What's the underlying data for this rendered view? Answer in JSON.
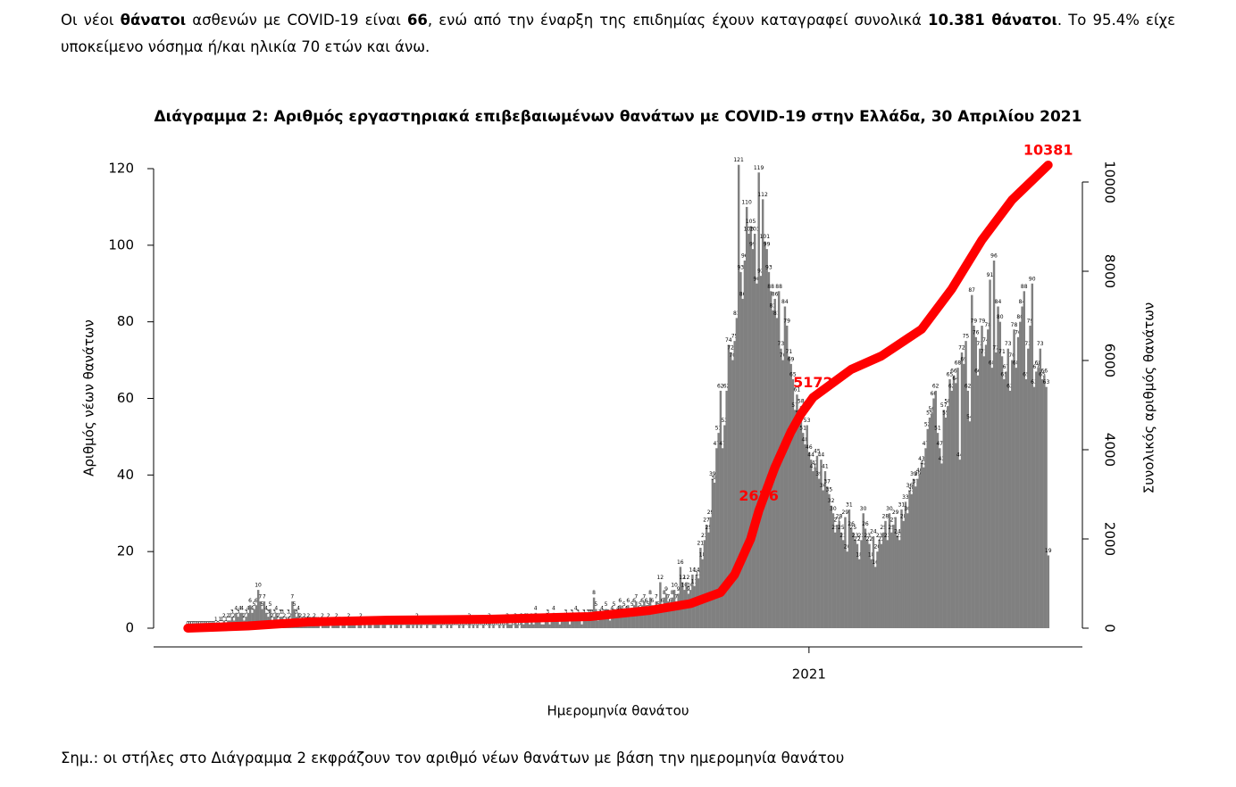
{
  "intro": [
    {
      "text": "Οι νέοι ",
      "bold": false
    },
    {
      "text": "θάνατοι",
      "bold": true
    },
    {
      "text": " ασθενών με COVID-19 είναι ",
      "bold": false
    },
    {
      "text": "66",
      "bold": true
    },
    {
      "text": ", ενώ από την έναρξη της επιδημίας έχουν καταγραφεί συνολικά ",
      "bold": false
    },
    {
      "text": "10.381 θάνατοι",
      "bold": true
    },
    {
      "text": ".  Το 95.4% είχε υποκείμενο νόσημα ή/και ηλικία 70 ετών και άνω.",
      "bold": false
    }
  ],
  "chart_data": {
    "type": "combo",
    "title": "Διάγραμμα 2: Αριθμός εργαστηριακά επιβεβαιωμένων θανάτων με COVID-19 στην Ελλάδα, 30 Απριλίου 2021",
    "x_label": "Ημερομηνία θανάτου",
    "y_label": "Αριθμός νέων θανάτων",
    "y2_label": "Συνολικός αριθμός θανάτων",
    "xlim": [
      -17,
      445
    ],
    "xticks": [
      {
        "value": 309,
        "label": "2021"
      }
    ],
    "ylim": [
      0,
      120
    ],
    "yticks": [
      0,
      20,
      40,
      60,
      80,
      100,
      120
    ],
    "y2lim": [
      0,
      10000
    ],
    "y2ticks": [
      0,
      2000,
      4000,
      6000,
      8000,
      10000
    ],
    "series": [
      {
        "type": "bar",
        "color": "#808080",
        "values": [
          0,
          0,
          0,
          0,
          0,
          0,
          0,
          0,
          0,
          0,
          0,
          0,
          0,
          0,
          1,
          0,
          1,
          1,
          2,
          1,
          2,
          2,
          3,
          2,
          4,
          3,
          4,
          4,
          2,
          3,
          4,
          6,
          4,
          5,
          6,
          10,
          7,
          5,
          7,
          4,
          3,
          5,
          2,
          3,
          4,
          2,
          3,
          3,
          2,
          1,
          3,
          2,
          7,
          5,
          3,
          4,
          2,
          1,
          2,
          1,
          2,
          1,
          1,
          2,
          1,
          1,
          0,
          2,
          1,
          1,
          2,
          0,
          1,
          1,
          2,
          1,
          0,
          1,
          1,
          0,
          2,
          1,
          1,
          1,
          0,
          1,
          2,
          0,
          1,
          0,
          1,
          1,
          0,
          1,
          1,
          1,
          0,
          1,
          1,
          0,
          0,
          1,
          0,
          1,
          1,
          0,
          1,
          0,
          0,
          1,
          1,
          0,
          1,
          0,
          2,
          0,
          1,
          0,
          0,
          1,
          0,
          0,
          1,
          1,
          0,
          0,
          1,
          0,
          0,
          1,
          0,
          1,
          0,
          0,
          0,
          1,
          0,
          1,
          0,
          0,
          2,
          0,
          1,
          0,
          1,
          0,
          0,
          1,
          0,
          0,
          2,
          0,
          1,
          0,
          0,
          1,
          0,
          1,
          0,
          2,
          1,
          1,
          0,
          2,
          1,
          0,
          2,
          1,
          2,
          2,
          1,
          2,
          1,
          4,
          2,
          2,
          1,
          1,
          2,
          3,
          1,
          2,
          4,
          2,
          2,
          1,
          2,
          2,
          3,
          2,
          1,
          3,
          2,
          4,
          3,
          2,
          1,
          3,
          2,
          3,
          3,
          3,
          8,
          5,
          2,
          3,
          4,
          3,
          5,
          3,
          2,
          4,
          5,
          3,
          4,
          6,
          4,
          5,
          4,
          6,
          3,
          5,
          6,
          7,
          4,
          5,
          6,
          7,
          6,
          5,
          8,
          6,
          4,
          7,
          5,
          12,
          6,
          8,
          9,
          7,
          6,
          8,
          10,
          7,
          9,
          16,
          12,
          10,
          12,
          9,
          10,
          14,
          11,
          14,
          13,
          21,
          18,
          23,
          27,
          25,
          29,
          39,
          38,
          47,
          51,
          62,
          47,
          53,
          62,
          74,
          72,
          70,
          75,
          81,
          121,
          93,
          86,
          96,
          110,
          103,
          105,
          99,
          103,
          90,
          119,
          92,
          112,
          101,
          99,
          93,
          88,
          83,
          86,
          81,
          88,
          73,
          70,
          84,
          79,
          71,
          69,
          65,
          57,
          61,
          55,
          58,
          51,
          48,
          53,
          46,
          44,
          41,
          42,
          45,
          39,
          44,
          36,
          41,
          37,
          35,
          32,
          30,
          25,
          27,
          28,
          25,
          23,
          29,
          20,
          31,
          26,
          25,
          23,
          22,
          18,
          23,
          30,
          26,
          23,
          22,
          18,
          24,
          16,
          20,
          23,
          22,
          25,
          28,
          23,
          30,
          25,
          27,
          29,
          24,
          23,
          31,
          28,
          33,
          30,
          36,
          35,
          39,
          37,
          39,
          40,
          43,
          42,
          47,
          52,
          55,
          56,
          60,
          62,
          51,
          47,
          43,
          57,
          55,
          58,
          65,
          62,
          66,
          64,
          68,
          44,
          72,
          69,
          75,
          62,
          54,
          87,
          79,
          76,
          66,
          73,
          79,
          71,
          74,
          78,
          91,
          68,
          96,
          72,
          84,
          80,
          71,
          65,
          67,
          73,
          62,
          70,
          78,
          68,
          76,
          80,
          84,
          88,
          65,
          73,
          79,
          90,
          63,
          67,
          68,
          73,
          65,
          66,
          63,
          19
        ]
      },
      {
        "type": "line",
        "axis": "y2",
        "color": "#ff0000",
        "x": [
          0,
          30,
          60,
          100,
          150,
          200,
          230,
          250,
          265,
          272,
          280,
          284,
          292,
          300,
          305,
          311,
          330,
          345,
          365,
          380,
          395,
          410,
          428
        ],
        "values": [
          0,
          50,
          140,
          180,
          200,
          260,
          400,
          550,
          800,
          1200,
          2000,
          2626,
          3600,
          4400,
          4800,
          5172,
          5800,
          6100,
          6700,
          7600,
          8700,
          9600,
          10381
        ],
        "value_labels": [
          null,
          null,
          null,
          null,
          null,
          null,
          null,
          null,
          null,
          null,
          null,
          "2626",
          null,
          null,
          null,
          "5172",
          null,
          null,
          null,
          null,
          null,
          null,
          "10381"
        ]
      }
    ]
  },
  "note": "Σημ.: οι στήλες στο Διάγραμμα 2 εκφράζουν τον αριθμό νέων θανάτων με βάση την ημερομηνία θανάτου"
}
